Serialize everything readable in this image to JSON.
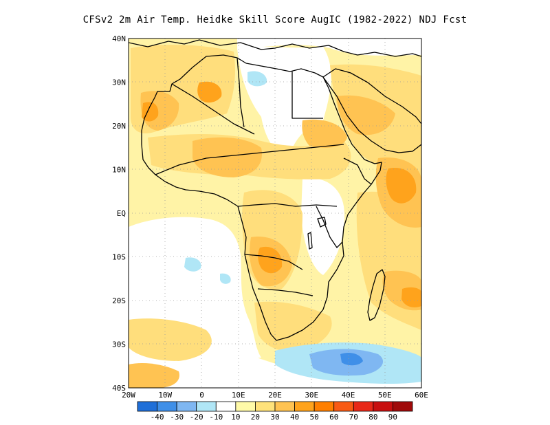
{
  "title": "CFSv2  2m Air Temp. Heidke Skill Score AugIC (1982-2022) NDJ Fcst",
  "map": {
    "lon_range": [
      -20,
      60
    ],
    "lat_range": [
      -40,
      40
    ],
    "lon_ticks": [
      {
        "value": -20,
        "label": "20W"
      },
      {
        "value": -10,
        "label": "10W"
      },
      {
        "value": 0,
        "label": "0"
      },
      {
        "value": 10,
        "label": "10E"
      },
      {
        "value": 20,
        "label": "20E"
      },
      {
        "value": 30,
        "label": "30E"
      },
      {
        "value": 40,
        "label": "40E"
      },
      {
        "value": 50,
        "label": "50E"
      },
      {
        "value": 60,
        "label": "60E"
      }
    ],
    "lat_ticks": [
      {
        "value": 40,
        "label": "40N"
      },
      {
        "value": 30,
        "label": "30N"
      },
      {
        "value": 20,
        "label": "20N"
      },
      {
        "value": 10,
        "label": "10N"
      },
      {
        "value": 0,
        "label": "EQ"
      },
      {
        "value": -10,
        "label": "10S"
      },
      {
        "value": -20,
        "label": "20S"
      },
      {
        "value": -30,
        "label": "30S"
      },
      {
        "value": -40,
        "label": "40S"
      }
    ],
    "grid": "dotted"
  },
  "colorbar": {
    "colors": [
      "#1f6fd8",
      "#3f8fe8",
      "#7fb7f2",
      "#b0e6f6",
      "#ffffff",
      "#fffaa8",
      "#ffe27a",
      "#ffc352",
      "#ffa31c",
      "#ff7f00",
      "#f85a14",
      "#e82818",
      "#c80f0f",
      "#a00a0a"
    ],
    "labels": [
      "-40",
      "-30",
      "-20",
      "-10",
      "10",
      "20",
      "30",
      "40",
      "50",
      "60",
      "70",
      "80",
      "90"
    ]
  },
  "palette": {
    "light_yellow": "#fff3a6",
    "yellow": "#ffde7c",
    "light_orange": "#ffc352",
    "orange": "#ffa31c",
    "dark_orange": "#ff8a10",
    "light_blue": "#b0e6f6",
    "blue": "#7fb7f2",
    "mid_blue": "#3f8fe8"
  }
}
